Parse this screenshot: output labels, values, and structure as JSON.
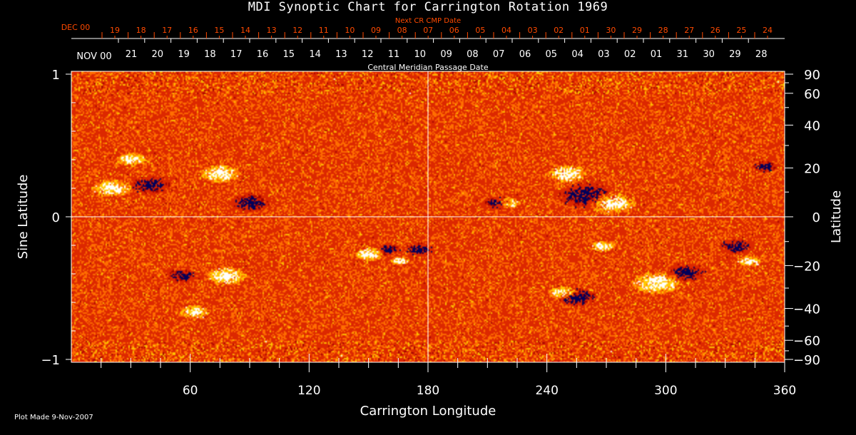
{
  "chart_data": {
    "type": "heatmap",
    "title": "MDI Synoptic Chart for Carrington Rotation 1969",
    "xlabel": "Carrington Longitude",
    "ylabel": "Sine Latitude",
    "y2label": "Latitude",
    "xlim": [
      0,
      360
    ],
    "ylim": [
      -1,
      1
    ],
    "x_ticks": [
      "60",
      "120",
      "180",
      "240",
      "300",
      "360"
    ],
    "y_ticks": [
      "1",
      "0",
      "−1"
    ],
    "y2_ticks": [
      "90",
      "60",
      "40",
      "20",
      "0",
      "−20",
      "−40",
      "−60",
      "−90"
    ],
    "y2_tick_values": [
      90,
      60,
      40,
      20,
      0,
      -20,
      -40,
      -60,
      -90
    ],
    "top_axis": {
      "label": "Central Meridian Passage Date",
      "month_label": "NOV 00",
      "ticks": [
        "21",
        "20",
        "19",
        "18",
        "17",
        "16",
        "15",
        "14",
        "13",
        "12",
        "11",
        "10",
        "09",
        "08",
        "07",
        "06",
        "05",
        "04",
        "03",
        "02",
        "01",
        "31",
        "30",
        "29",
        "28"
      ]
    },
    "next_cr_axis": {
      "label": "Next CR CMP Date",
      "month_label": "DEC 00",
      "ticks": [
        "19",
        "18",
        "17",
        "16",
        "15",
        "14",
        "13",
        "12",
        "11",
        "10",
        "09",
        "08",
        "07",
        "06",
        "05",
        "04",
        "03",
        "02",
        "01",
        "30",
        "29",
        "28",
        "27",
        "26",
        "25",
        "24"
      ],
      "color": "#ff4a00"
    },
    "colormap": [
      "#000060",
      "#c00000",
      "#ff6a00",
      "#ffd000",
      "#ffffff"
    ],
    "grid": "center crosshair at 180, 0"
  },
  "footer": {
    "plot_made": "Plot Made  9-Nov-2007"
  }
}
